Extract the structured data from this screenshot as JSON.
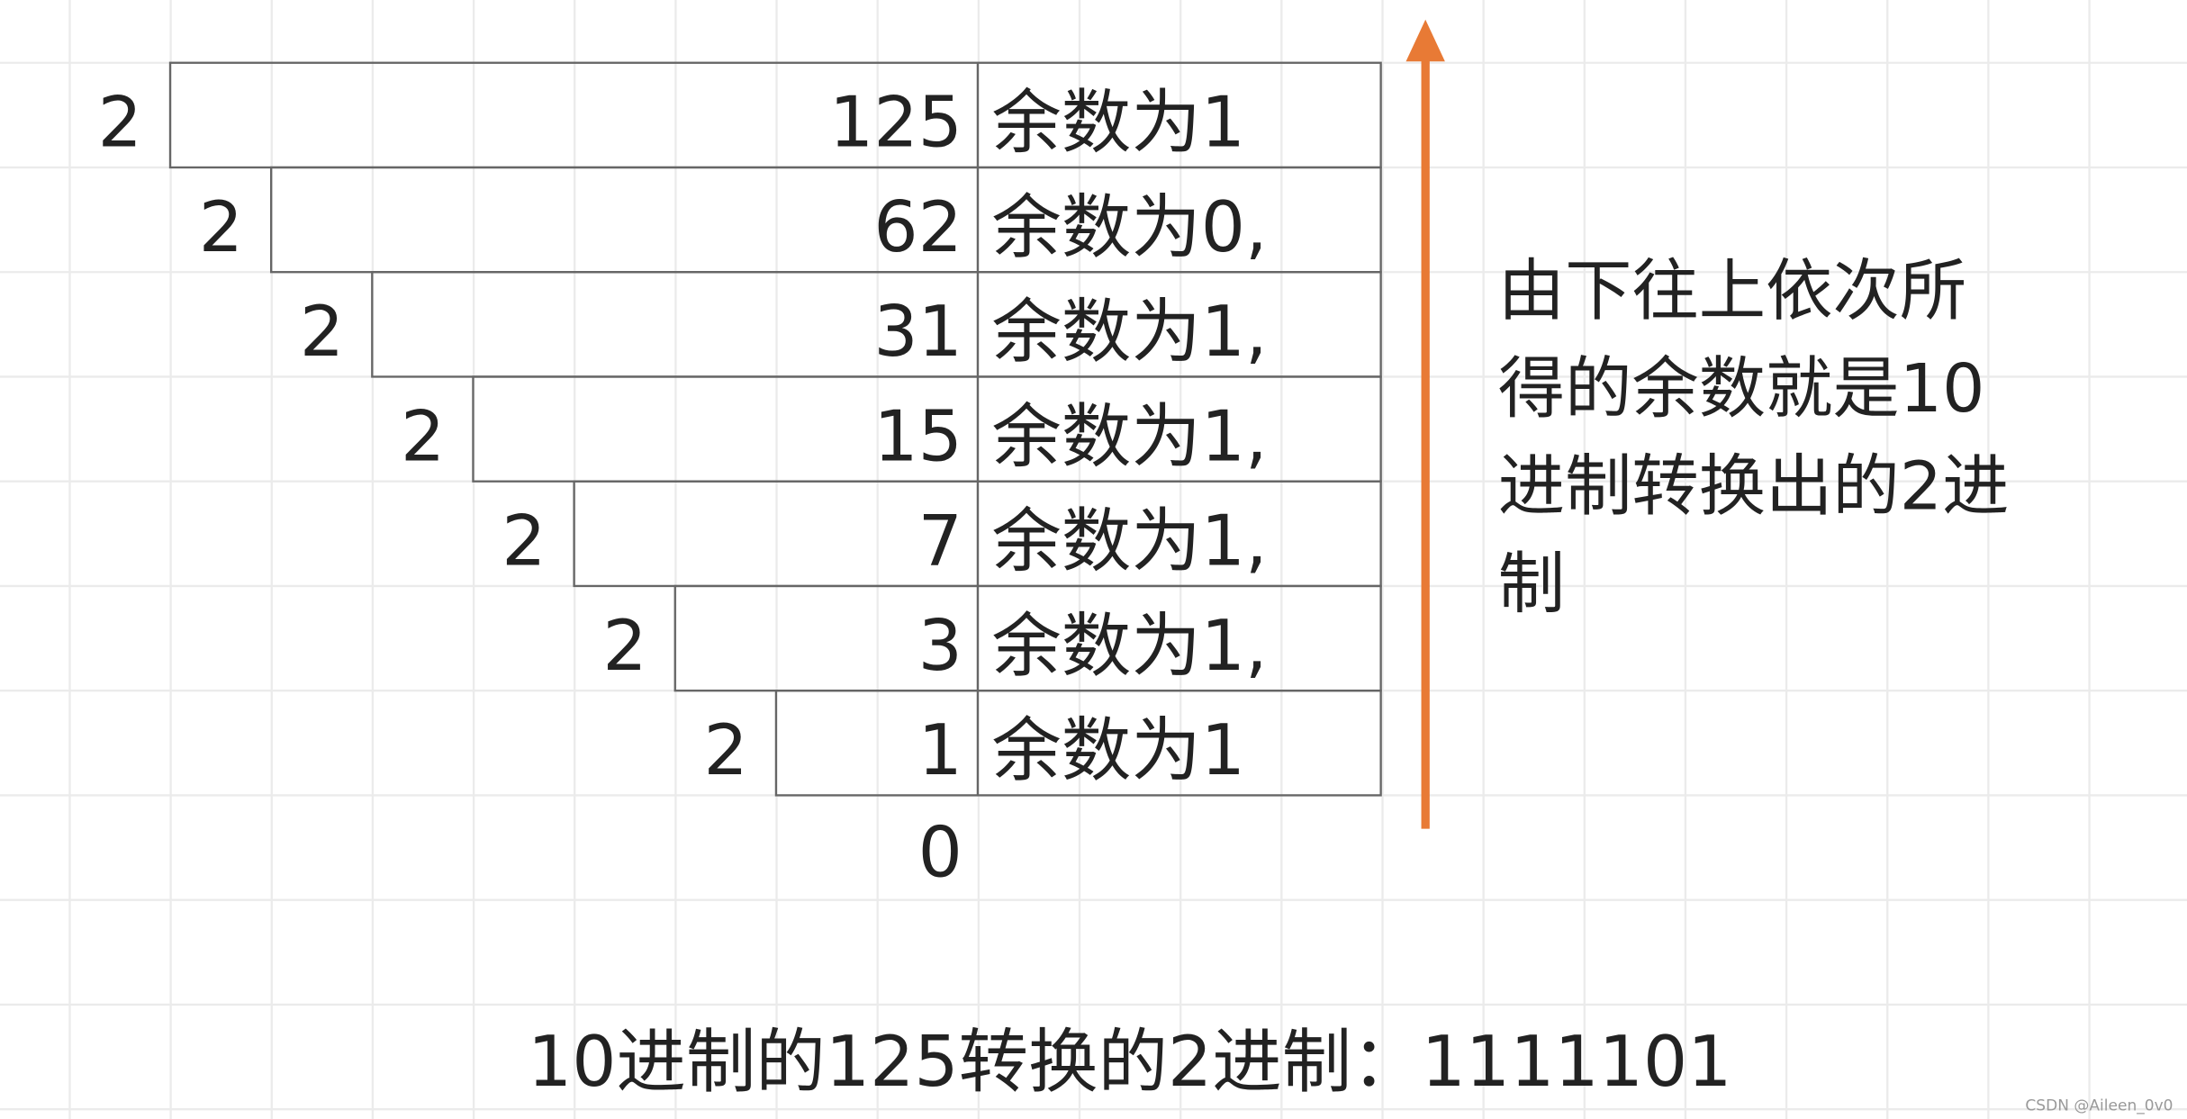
{
  "rows": [
    {
      "divisor": "2",
      "value": "125",
      "remainder": "余数为1"
    },
    {
      "divisor": "2",
      "value": "62",
      "remainder": "余数为0,"
    },
    {
      "divisor": "2",
      "value": "31",
      "remainder": "余数为1,"
    },
    {
      "divisor": "2",
      "value": "15",
      "remainder": "余数为1,"
    },
    {
      "divisor": "2",
      "value": "7",
      "remainder": "余数为1,"
    },
    {
      "divisor": "2",
      "value": "3",
      "remainder": "余数为1,"
    },
    {
      "divisor": "2",
      "value": "1",
      "remainder": "余数为1"
    }
  ],
  "final_quotient": "0",
  "note_lines": [
    "由下往上依次所",
    "得的余数就是10",
    "进制转换出的2进",
    "制"
  ],
  "result": "10进制的125转换的2进制：1111101",
  "watermark": "CSDN @Aileen_0v0",
  "colors": {
    "arrow": "#E87A35",
    "grid": "#EBEBEB",
    "border": "#666666"
  }
}
